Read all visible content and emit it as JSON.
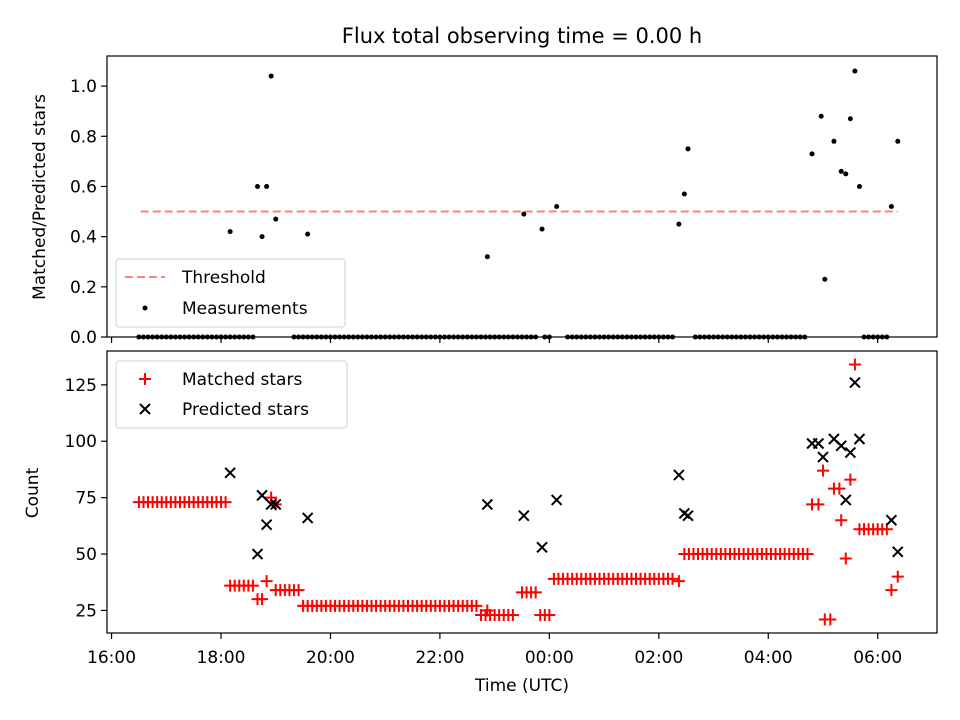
{
  "chart_data": [
    {
      "type": "scatter",
      "title": "Flux total observing time = 0.00 h",
      "xlabel": "",
      "ylabel": "Matched/Predicted stars",
      "xlim": [
        "15:55",
        "31:05"
      ],
      "ylim": [
        0,
        1.12
      ],
      "xticks": [
        "16:00",
        "18:00",
        "20:00",
        "22:00",
        "00:00",
        "02:00",
        "04:00",
        "06:00"
      ],
      "yticks": [
        "0.0",
        "0.2",
        "0.4",
        "0.6",
        "0.8",
        "1.0"
      ],
      "grid": false,
      "legend_position": "lower-left",
      "threshold": {
        "name": "Threshold",
        "value": 0.5,
        "x_start": "16:32",
        "x_end": "30:22",
        "color": "#ff8080"
      },
      "series": [
        {
          "name": "Measurements",
          "color": "#000000",
          "points": [
            [
              "18:10",
              0.42
            ],
            [
              "18:40",
              0.6
            ],
            [
              "18:45",
              0.4
            ],
            [
              "18:50",
              0.6
            ],
            [
              "18:55",
              1.04
            ],
            [
              "19:00",
              0.47
            ],
            [
              "19:35",
              0.41
            ],
            [
              "22:52",
              0.32
            ],
            [
              "23:32",
              0.49
            ],
            [
              "23:52",
              0.43
            ],
            [
              "24:08",
              0.52
            ],
            [
              "26:22",
              0.45
            ],
            [
              "26:28",
              0.57
            ],
            [
              "26:32",
              0.75
            ],
            [
              "28:48",
              0.73
            ],
            [
              "28:58",
              0.88
            ],
            [
              "29:02",
              0.23
            ],
            [
              "29:12",
              0.78
            ],
            [
              "29:20",
              0.66
            ],
            [
              "29:25",
              0.65
            ],
            [
              "29:30",
              0.87
            ],
            [
              "29:35",
              1.06
            ],
            [
              "29:40",
              0.6
            ],
            [
              "30:15",
              0.52
            ],
            [
              "30:22",
              0.78
            ]
          ],
          "zero_ranges": [
            [
              "16:30",
              "18:35"
            ],
            [
              "19:20",
              "23:45"
            ],
            [
              "23:55",
              "24:00"
            ],
            [
              "24:20",
              "26:15"
            ],
            [
              "26:40",
              "28:40"
            ],
            [
              "29:45",
              "30:10"
            ]
          ]
        }
      ]
    },
    {
      "type": "scatter",
      "title": "",
      "xlabel": "Time (UTC)",
      "ylabel": "Count",
      "xlim": [
        "15:55",
        "31:05"
      ],
      "ylim": [
        15,
        140
      ],
      "xticks": [
        "16:00",
        "18:00",
        "20:00",
        "22:00",
        "00:00",
        "02:00",
        "04:00",
        "06:00"
      ],
      "yticks": [
        "25",
        "50",
        "75",
        "100",
        "125"
      ],
      "grid": false,
      "legend_position": "upper-left",
      "series": [
        {
          "name": "Matched stars",
          "color": "#ff0000",
          "marker": "plus",
          "segments": [
            [
              "16:30",
              "18:05",
              73
            ],
            [
              "18:10",
              "18:35",
              36
            ],
            [
              "18:40",
              "18:45",
              30
            ],
            [
              "19:00",
              "19:25",
              34
            ],
            [
              "19:30",
              "22:40",
              27
            ],
            [
              "22:45",
              "23:20",
              23
            ],
            [
              "23:30",
              "23:45",
              33
            ],
            [
              "23:50",
              "24:00",
              23
            ],
            [
              "24:05",
              "26:15",
              39
            ],
            [
              "26:28",
              "28:45",
              50
            ],
            [
              "29:40",
              "30:10",
              61
            ]
          ],
          "points": [
            [
              "18:50",
              38
            ],
            [
              "18:55",
              75
            ],
            [
              "19:00",
              72
            ],
            [
              "22:52",
              25
            ],
            [
              "26:22",
              38
            ],
            [
              "28:48",
              72
            ],
            [
              "28:55",
              72
            ],
            [
              "29:00",
              87
            ],
            [
              "29:02",
              21
            ],
            [
              "29:08",
              21
            ],
            [
              "29:12",
              79
            ],
            [
              "29:18",
              79
            ],
            [
              "29:20",
              65
            ],
            [
              "29:25",
              48
            ],
            [
              "29:30",
              83
            ],
            [
              "29:35",
              134
            ],
            [
              "30:15",
              34
            ],
            [
              "30:22",
              40
            ]
          ]
        },
        {
          "name": "Predicted stars",
          "color": "#000000",
          "marker": "x",
          "points": [
            [
              "18:10",
              86
            ],
            [
              "18:40",
              50
            ],
            [
              "18:45",
              76
            ],
            [
              "18:50",
              63
            ],
            [
              "18:55",
              72
            ],
            [
              "19:00",
              72
            ],
            [
              "19:35",
              66
            ],
            [
              "22:52",
              72
            ],
            [
              "23:32",
              67
            ],
            [
              "23:52",
              53
            ],
            [
              "24:08",
              74
            ],
            [
              "26:22",
              85
            ],
            [
              "26:28",
              68
            ],
            [
              "26:32",
              67
            ],
            [
              "28:48",
              99
            ],
            [
              "28:55",
              99
            ],
            [
              "29:00",
              93
            ],
            [
              "29:12",
              101
            ],
            [
              "29:20",
              98
            ],
            [
              "29:25",
              74
            ],
            [
              "29:30",
              95
            ],
            [
              "29:35",
              126
            ],
            [
              "29:40",
              101
            ],
            [
              "30:15",
              65
            ],
            [
              "30:22",
              51
            ]
          ]
        }
      ]
    }
  ]
}
